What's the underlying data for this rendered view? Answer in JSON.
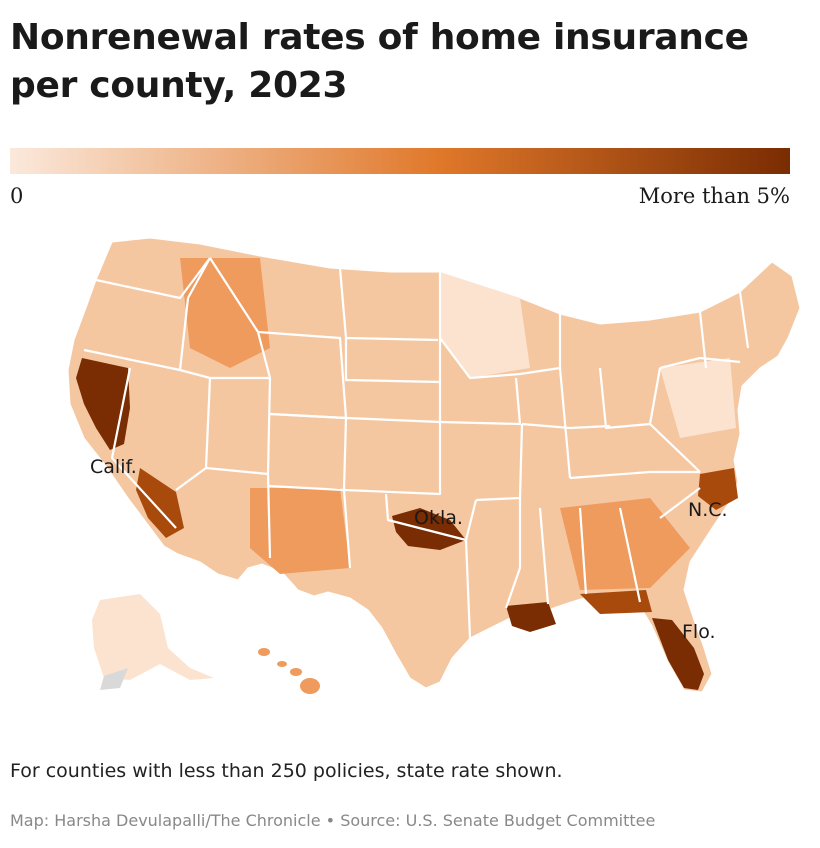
{
  "title": "Nonrenewal rates of home insurance per county, 2023",
  "legend": {
    "min_label": "0",
    "max_label": "More than 5%",
    "color_low": "#fbe9dc",
    "color_mid": "#e0782a",
    "color_high": "#7a2c02"
  },
  "map": {
    "labels": {
      "california": "Calif.",
      "oklahoma": "Okla.",
      "north_carolina": "N.C.",
      "florida": "Flo."
    },
    "colors": {
      "land_base": "#f5c7a1",
      "light": "#fbe3d0",
      "medium": "#ee9b5d",
      "dark": "#a84a0c",
      "darkest": "#7a2c02",
      "no_data": "#d9d9d9",
      "border": "#ffffff"
    }
  },
  "note": "For counties with less than 250 policies, state rate shown.",
  "credit": "Map: Harsha Devulapalli/The Chronicle • Source: U.S. Senate Budget Committee"
}
